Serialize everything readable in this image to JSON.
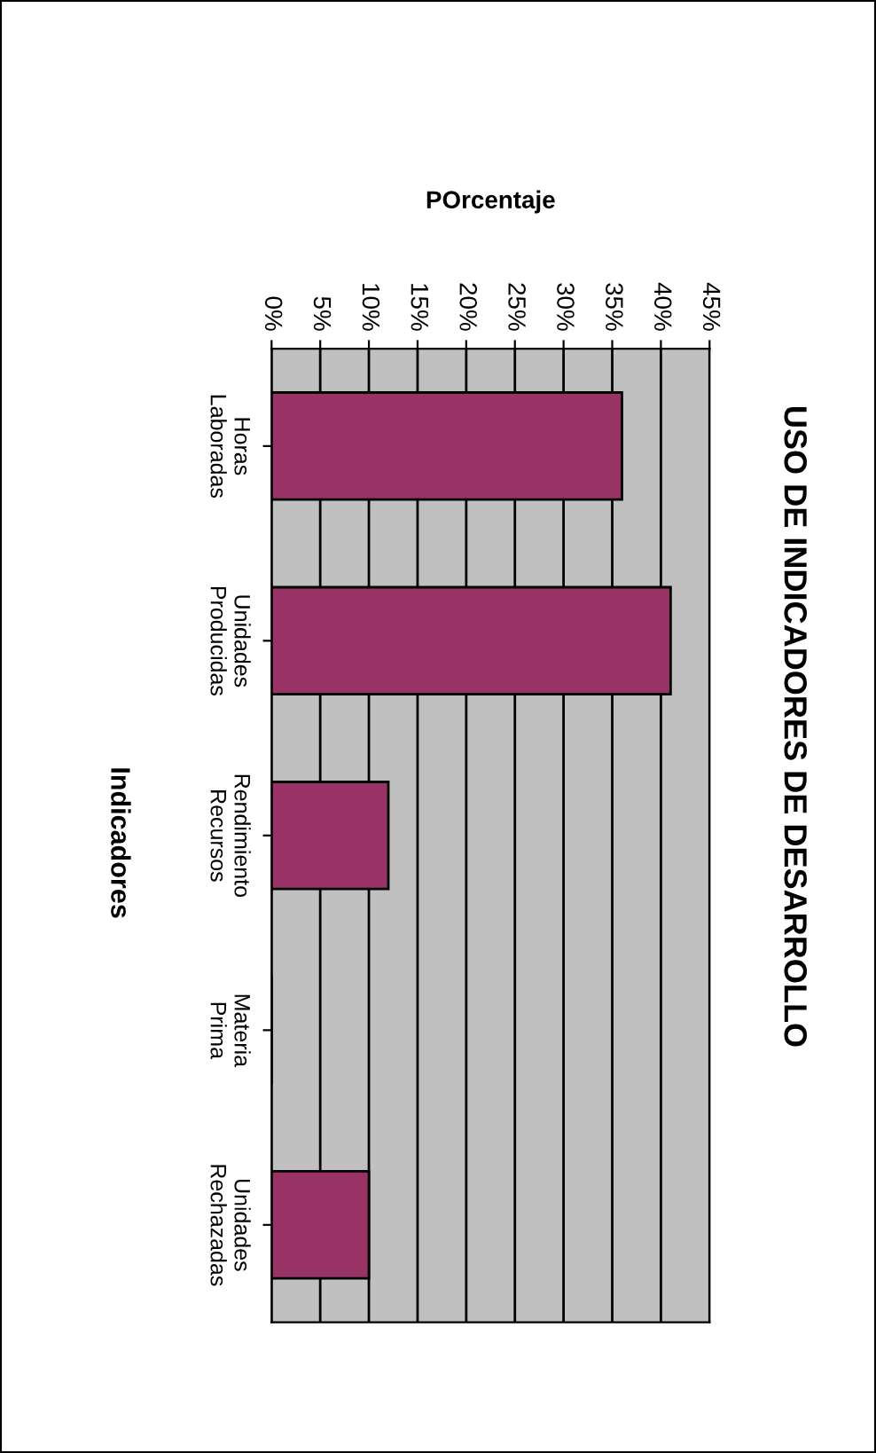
{
  "chart_data": {
    "type": "bar",
    "orientation": "horizontal",
    "title": "USO DE INDICADORES DE DESARROLLO",
    "xlabel": "POrcentaje",
    "ylabel": "Indicadores",
    "categories": [
      "Horas\nLaboradas",
      "Unidades\nProducidas",
      "Rendimiento\nRecursos",
      "Materia\nPrima",
      "Unidades\nRechazadas"
    ],
    "values": [
      36,
      41,
      12,
      0,
      10
    ],
    "color": "#993366",
    "xlim": [
      0,
      45
    ],
    "xticks": [
      {
        "value": 0,
        "label": "0%"
      },
      {
        "value": 5,
        "label": "5%"
      },
      {
        "value": 10,
        "label": "10%"
      },
      {
        "value": 15,
        "label": "15%"
      },
      {
        "value": 20,
        "label": "20%"
      },
      {
        "value": 25,
        "label": "25%"
      },
      {
        "value": 30,
        "label": "30%"
      },
      {
        "value": 35,
        "label": "35%"
      },
      {
        "value": 40,
        "label": "40%"
      },
      {
        "value": 45,
        "label": "45%"
      }
    ],
    "grid": "x"
  }
}
